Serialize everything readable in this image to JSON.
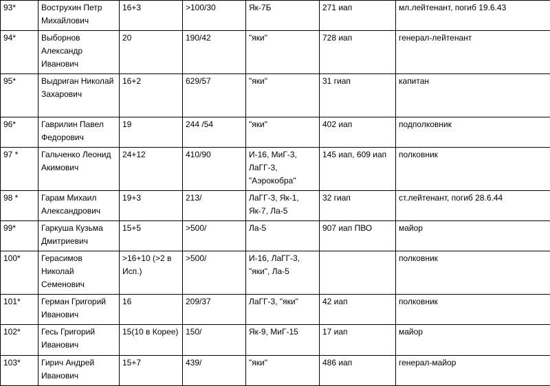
{
  "rows": [
    {
      "num": "93*",
      "name": "Вострухин Петр Михайлович",
      "victories": "16+3",
      "sorties": ">100/30",
      "aircraft": "Як-7Б",
      "unit": "271 иап",
      "rank": "мл.лейтенант, погиб 19.6.43"
    },
    {
      "num": "94*",
      "name": "Выборнов Александр Иванович",
      "victories": "20",
      "sorties": "190/42",
      "aircraft": "\"яки\"",
      "unit": "728 иап",
      "rank": "генерал-лейтенант"
    },
    {
      "num": "95*",
      "name": "Выдриган Николай Захарович",
      "victories": "16+2",
      "sorties": "629/57",
      "aircraft": "\"яки\"",
      "unit": "31 гиап",
      "rank": "капитан"
    },
    {
      "num": "96*",
      "name": "Гаврилин Павел Федорович",
      "victories": "19",
      "sorties": "244 /54",
      "aircraft": "\"яки\"",
      "unit": "402 иап",
      "rank": "подполковник"
    },
    {
      "num": "97 *",
      "name": "Гальченко Леонид Акимович",
      "victories": "24+12",
      "sorties": "410/90",
      "aircraft": "И-16, МиГ-3, ЛаГГ-3, \"Аэрокобра\"",
      "unit": "145 иап, 609 иап",
      "rank": "полковник"
    },
    {
      "num": "98 *",
      "name": "Гарам Михаил Александрович",
      "victories": "19+3",
      "sorties": "213/",
      "aircraft": "ЛаГГ-3, Як-1, Як-7, Ла-5",
      "unit": "32 гиап",
      "rank": "ст.лейтенант, погиб 28.6.44"
    },
    {
      "num": "99*",
      "name": "Гаркуша Кузьма Дмитриевич",
      "victories": "15+5",
      "sorties": ">500/",
      "aircraft": "Ла-5",
      "unit": "907 иап ПВО",
      "rank": "майор"
    },
    {
      "num": "100*",
      "name": "Герасимов Николай Семенович",
      "victories": ">16+10 (>2 в Исп.)",
      "sorties": ">500/",
      "aircraft": "И-16, ЛаГГ-3, \"яки\", Ла-5",
      "unit": "",
      "rank": "полковник"
    },
    {
      "num": "101*",
      "name": "Герман Григорий Иванович",
      "victories": "16",
      "sorties": "209/37",
      "aircraft": "ЛаГГ-3, \"яки\"",
      "unit": "42 иап",
      "rank": "полковник"
    },
    {
      "num": "102*",
      "name": "Гесь Григорий Иванович",
      "victories": "15(10 в Корее)",
      "sorties": "150/",
      "aircraft": "Як-9, МиГ-15",
      "unit": "17 иап",
      "rank": "майор"
    },
    {
      "num": "103*",
      "name": "Гирич Андрей Иванович",
      "victories": "15+7",
      "sorties": "439/",
      "aircraft": "\"яки\"",
      "unit": "486 иап",
      "rank": "генерал-майор"
    }
  ]
}
